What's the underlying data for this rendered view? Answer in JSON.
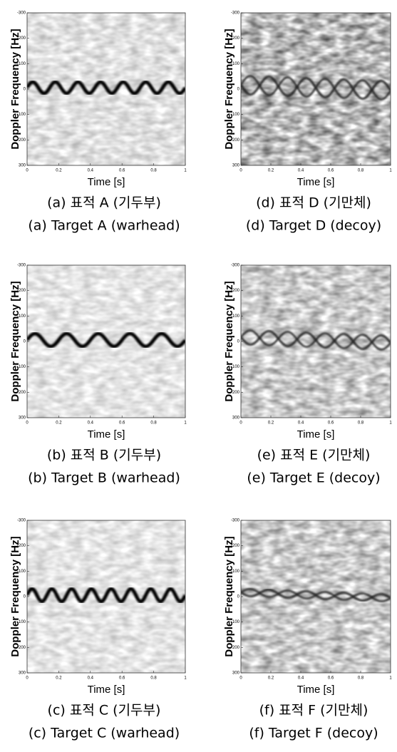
{
  "panels": [
    {
      "y_label": "Doppler Frequency [Hz]",
      "x_label": "Time [s]",
      "yticks": [
        -300,
        -200,
        -100,
        0,
        100,
        200,
        300
      ],
      "xticks": [
        0,
        0.2,
        0.4,
        0.6,
        0.8,
        1
      ],
      "caption_ko": "(a)  표적  A  (기두부)",
      "caption_en": "(a)  Target  A  (warhead)"
    },
    {
      "y_label": "Doppler Frequency [Hz]",
      "x_label": "Time [s]",
      "yticks": [
        -300,
        -200,
        -100,
        0,
        100,
        200,
        300
      ],
      "xticks": [
        0,
        0.2,
        0.4,
        0.6,
        0.8,
        1
      ],
      "caption_ko": "(b)  표적  B  (기두부)",
      "caption_en": "(b)  Target  B  (warhead)"
    },
    {
      "y_label": "Doppler Frequency [Hz]",
      "x_label": "Time [s]",
      "yticks": [
        -300,
        -200,
        -100,
        0,
        100,
        200,
        300
      ],
      "xticks": [
        0,
        0.2,
        0.4,
        0.6,
        0.8,
        1
      ],
      "caption_ko": "(c)  표적  C  (기두부)",
      "caption_en": "(c)  Target  C  (warhead)"
    },
    {
      "y_label": "Doppler Frequency [Hz]",
      "x_label": "Time [s]",
      "yticks": [
        -300,
        -200,
        -100,
        0,
        100,
        200,
        300
      ],
      "xticks": [
        0,
        0.2,
        0.4,
        0.6,
        0.8,
        1
      ],
      "caption_ko": "(d)  표적  D  (기만체)",
      "caption_en": "(d)  Target  D  (decoy)"
    },
    {
      "y_label": "Doppler Frequency [Hz]",
      "x_label": "Time [s]",
      "yticks": [
        -300,
        -200,
        -100,
        0,
        100,
        200,
        300
      ],
      "xticks": [
        0,
        0.2,
        0.4,
        0.6,
        0.8,
        1
      ],
      "caption_ko": "(e)  표적  E  (기만체)",
      "caption_en": "(e)  Target  E  (decoy)"
    },
    {
      "y_label": "Doppler Frequency [Hz]",
      "x_label": "Time [s]",
      "yticks": [
        -300,
        -200,
        -100,
        0,
        100,
        200,
        300
      ],
      "xticks": [
        0,
        0.2,
        0.4,
        0.6,
        0.8,
        1
      ],
      "caption_ko": "(f)  표적  F  (기만체)",
      "caption_en": "(f)  Target  F  (decoy)"
    }
  ]
}
